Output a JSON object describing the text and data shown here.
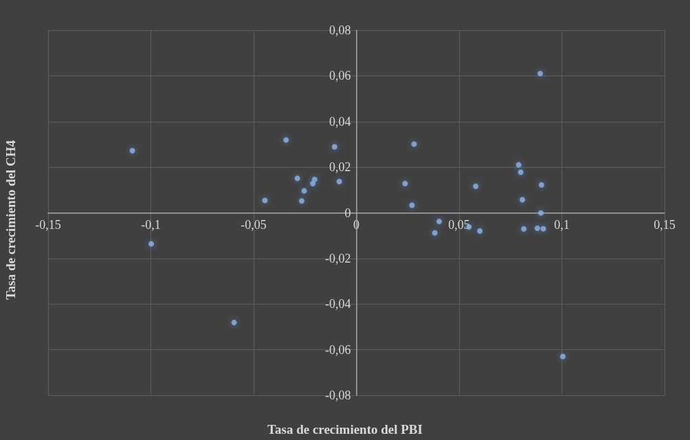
{
  "chart_data": {
    "type": "scatter",
    "xlabel": "Tasa de crecimiento del PBI",
    "ylabel": "Tasa de crecimiento del CH4",
    "x": [
      -0.109,
      -0.0998,
      -0.0342,
      -0.0106,
      -0.0287,
      -0.0203,
      -0.0212,
      -0.0083,
      -0.0254,
      -0.0266,
      -0.0445,
      -0.0595,
      0.0281,
      0.0237,
      0.0271,
      0.0403,
      0.0382,
      0.0548,
      0.0601,
      0.0581,
      0.079,
      0.08,
      0.0808,
      0.0901,
      0.0898,
      0.0815,
      0.0881,
      0.091,
      0.0895,
      0.1005
    ],
    "values": [
      0.0272,
      -0.0136,
      0.0319,
      0.0289,
      0.0151,
      0.0146,
      0.0128,
      0.0137,
      0.0096,
      0.0052,
      0.0054,
      -0.0481,
      0.0301,
      0.0128,
      0.0033,
      -0.0038,
      -0.0088,
      -0.0062,
      -0.008,
      0.0116,
      0.021,
      0.0178,
      0.0057,
      0.0122,
      -0.0001,
      -0.0071,
      -0.0068,
      -0.007,
      0.061,
      -0.063
    ],
    "color": "#8eb4e3",
    "marker": "circle",
    "grid": true,
    "xlim": [
      -0.15,
      0.15
    ],
    "xticks": [
      {
        "value": -0.15,
        "label": "-0,15"
      },
      {
        "value": -0.1,
        "label": "-0,1"
      },
      {
        "value": -0.05,
        "label": "-0,05"
      },
      0,
      {
        "value": 0.05,
        "label": "0,05"
      },
      {
        "value": 0.1,
        "label": "0,1"
      },
      {
        "value": 0.15,
        "label": "0,15"
      }
    ],
    "ylim": [
      -0.08,
      0.08
    ],
    "yticks": [
      {
        "value": -0.08,
        "label": "-0,08"
      },
      {
        "value": -0.06,
        "label": "-0,06"
      },
      {
        "value": -0.04,
        "label": "-0,04"
      },
      {
        "value": -0.02,
        "label": "-0,02"
      },
      0,
      {
        "value": 0.02,
        "label": "0,02"
      },
      {
        "value": 0.04,
        "label": "0,04"
      },
      {
        "value": 0.06,
        "label": "0,06"
      },
      {
        "value": 0.08,
        "label": "0,08"
      }
    ]
  }
}
